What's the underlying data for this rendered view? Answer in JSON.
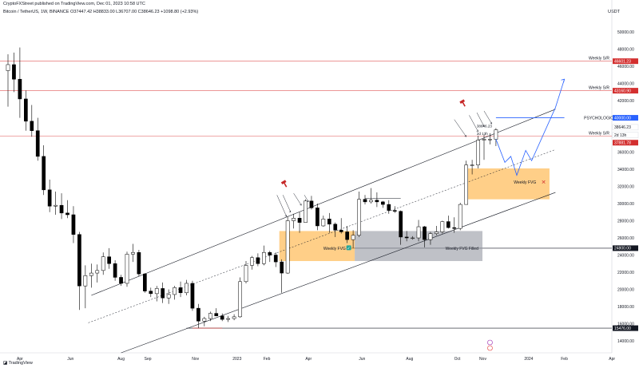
{
  "header": {
    "publisher": "CryptoFXStreet published on TradingView.com, Dec 01, 2023 10:58 UTC",
    "symbol": "Bitcoin / TetherUS, 1W, BINANCE",
    "ohlc": "O37447.42 H38833.00 L36707.00 C38646.23 +1098.80 (+2.93%)",
    "currency": "USDT"
  },
  "footer": {
    "brand": "TradingView"
  },
  "chart_data": {
    "type": "candlestick",
    "xlabel": "",
    "ylabel": "",
    "x_ticks": [
      "Apr",
      "Jun",
      "Aug",
      "Sep",
      "Nov",
      "2023",
      "Feb",
      "Apr",
      "Jun",
      "Aug",
      "Oct",
      "Nov",
      "2024",
      "Feb",
      "Apr",
      "May"
    ],
    "y_ticks": [
      50000,
      48000,
      46000,
      44000,
      42000,
      40000,
      38000,
      36000,
      34000,
      32000,
      30000,
      28000,
      26000,
      24000,
      22000,
      20000,
      18000,
      16000,
      14000
    ],
    "ylim": [
      12600,
      51500
    ],
    "grid": false,
    "colors": {
      "up": "#ffffff",
      "down": "#000000",
      "wick": "#000000",
      "resistance": "#e57373",
      "projection": "#2962ff",
      "fvg": "#ffa726",
      "filled_fvg": "#9598a1",
      "price_badge": "#d32f2f"
    },
    "candles": [
      [
        45500,
        47400,
        41300,
        46200
      ],
      [
        46200,
        47600,
        43000,
        44500
      ],
      [
        44500,
        48200,
        40000,
        42200
      ],
      [
        42200,
        43200,
        38500,
        39600
      ],
      [
        39600,
        41500,
        37800,
        38500
      ],
      [
        38500,
        40000,
        35000,
        35500
      ],
      [
        35500,
        36800,
        31000,
        31600
      ],
      [
        31600,
        32800,
        29000,
        29700
      ],
      [
        29700,
        31400,
        28700,
        29800
      ],
      [
        29800,
        31200,
        28200,
        28900
      ],
      [
        28900,
        30400,
        28300,
        28700
      ],
      [
        28700,
        29700,
        25400,
        26400
      ],
      [
        26400,
        26700,
        17600,
        20400
      ],
      [
        20400,
        22800,
        17800,
        21600
      ],
      [
        21600,
        23000,
        20200,
        21900
      ],
      [
        21900,
        22900,
        20800,
        22200
      ],
      [
        22200,
        24300,
        21700,
        23800
      ],
      [
        23800,
        24800,
        22400,
        23000
      ],
      [
        23000,
        23400,
        21000,
        21400
      ],
      [
        21400,
        21700,
        20400,
        20700
      ],
      [
        20700,
        24400,
        20300,
        24100
      ],
      [
        24100,
        25300,
        23200,
        24300
      ],
      [
        24300,
        24600,
        21500,
        21800
      ],
      [
        21800,
        21900,
        19600,
        19800
      ],
      [
        19800,
        20200,
        19100,
        19500
      ],
      [
        19500,
        20400,
        18600,
        20100
      ],
      [
        20100,
        20800,
        18400,
        19000
      ],
      [
        19000,
        20000,
        18300,
        19400
      ],
      [
        19400,
        20400,
        18800,
        20200
      ],
      [
        20200,
        20900,
        19100,
        19600
      ],
      [
        19600,
        21100,
        19300,
        20700
      ],
      [
        20700,
        21000,
        17500,
        17800
      ],
      [
        17800,
        18300,
        15500,
        16300
      ],
      [
        16300,
        16800,
        15700,
        16600
      ],
      [
        16600,
        17400,
        16300,
        17200
      ],
      [
        17200,
        17800,
        16900,
        16900
      ],
      [
        16900,
        17200,
        16300,
        16500
      ],
      [
        16500,
        16900,
        16200,
        16600
      ],
      [
        16600,
        17100,
        16400,
        16800
      ],
      [
        16800,
        21400,
        16700,
        20900
      ],
      [
        20900,
        23300,
        20700,
        22800
      ],
      [
        22800,
        23900,
        22300,
        23700
      ],
      [
        23700,
        24200,
        22700,
        23000
      ],
      [
        23000,
        25100,
        22800,
        24300
      ],
      [
        24300,
        24500,
        23200,
        24000
      ],
      [
        24000,
        24300,
        22600,
        23200
      ],
      [
        23200,
        23500,
        19600,
        21900
      ],
      [
        21900,
        28500,
        21800,
        28000
      ],
      [
        28000,
        28800,
        27100,
        28300
      ],
      [
        28300,
        29000,
        26600,
        27800
      ],
      [
        27800,
        30500,
        27800,
        30300
      ],
      [
        30300,
        30900,
        29300,
        29500
      ],
      [
        29500,
        30000,
        26900,
        27400
      ],
      [
        27400,
        28600,
        27300,
        28200
      ],
      [
        28200,
        28900,
        26600,
        27600
      ],
      [
        27600,
        27800,
        26100,
        26900
      ],
      [
        26900,
        28300,
        26500,
        26700
      ],
      [
        26700,
        27400,
        25400,
        25800
      ],
      [
        25800,
        26900,
        24800,
        26300
      ],
      [
        26300,
        31400,
        26100,
        30500
      ],
      [
        30500,
        31000,
        29900,
        30200
      ],
      [
        30200,
        31800,
        30000,
        30400
      ],
      [
        30400,
        31300,
        29600,
        30200
      ],
      [
        30200,
        30300,
        29500,
        29900
      ],
      [
        29900,
        30400,
        28800,
        29200
      ],
      [
        29200,
        29700,
        28900,
        29100
      ],
      [
        29100,
        29200,
        25200,
        26100
      ],
      [
        26100,
        26800,
        25600,
        26000
      ],
      [
        26000,
        26200,
        25800,
        26000
      ],
      [
        26000,
        28100,
        25600,
        27300
      ],
      [
        27300,
        27400,
        24900,
        25800
      ],
      [
        25800,
        26700,
        25200,
        26500
      ],
      [
        26500,
        27400,
        26300,
        26700
      ],
      [
        26700,
        28000,
        26500,
        27900
      ],
      [
        27900,
        28600,
        27100,
        27200
      ],
      [
        27200,
        28400,
        26600,
        27100
      ],
      [
        27100,
        30100,
        26900,
        29900
      ],
      [
        29900,
        35000,
        29900,
        34500
      ],
      [
        34500,
        35100,
        33400,
        34500
      ],
      [
        34500,
        37900,
        34100,
        37400
      ],
      [
        37400,
        38000,
        35100,
        37500
      ],
      [
        37500,
        38200,
        36900,
        37500
      ],
      [
        37500,
        38800,
        36700,
        38600
      ]
    ],
    "horizontal_levels": [
      {
        "label": "Weekly S/R",
        "value": 46601.23
      },
      {
        "label": "Weekly S/R",
        "value": 43160.9
      },
      {
        "label": "Weekly S/R",
        "value": 37881.78
      },
      {
        "label": "",
        "value": 24800
      },
      {
        "label": "",
        "value": 15476
      }
    ],
    "price_tags": [
      {
        "value": "46601.23",
        "bg": "#d32f2f",
        "color": "#ffffff",
        "price": 46601.23
      },
      {
        "value": "43160.90",
        "bg": "#d32f2f",
        "color": "#ffffff",
        "price": 43160.9
      },
      {
        "value": "40000.00",
        "bg": "#2962ff",
        "color": "#ffffff",
        "price": 40000
      },
      {
        "value": "38646.23",
        "bg": "#ffffff",
        "color": "#131722",
        "price": 38900
      },
      {
        "value": "2d 13h",
        "bg": "#ffffff",
        "color": "#131722",
        "price": 38000
      },
      {
        "value": "37881.78",
        "bg": "#d32f2f",
        "color": "#ffffff",
        "price": 37100
      },
      {
        "value": "24800.00",
        "bg": "#131722",
        "color": "#ffffff",
        "price": 24800
      },
      {
        "value": "15476.00",
        "bg": "#131722",
        "color": "#ffffff",
        "price": 15476
      }
    ],
    "annotations": [
      {
        "text": "Weekly S/R",
        "price": 46601.23
      },
      {
        "text": "Weekly S/R",
        "price": 43160.9
      },
      {
        "text": "Weekly S/R",
        "price": 37881.78
      },
      {
        "text": "PSYCHOLOGICAL LEVEL",
        "price": 40000
      },
      {
        "text": "Weekly FVG",
        "marker": "✓"
      },
      {
        "text": "Weekly FVG",
        "marker": "✕"
      },
      {
        "text": "Weekly FVG Filled",
        "marker": ""
      }
    ]
  }
}
